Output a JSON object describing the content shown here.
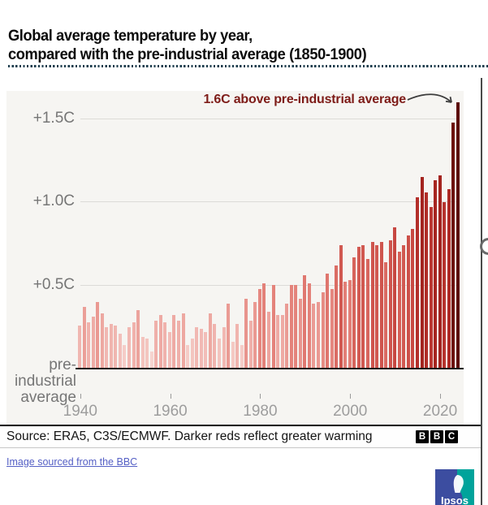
{
  "title": {
    "line1": "Global average temperature by year,",
    "line2": "compared with the pre-industrial average (1850-1900)"
  },
  "annotation": {
    "text": "1.6C above pre-industrial average"
  },
  "axis": {
    "zero_label_lines": [
      "pre-",
      "industrial",
      "average"
    ]
  },
  "source_bar": {
    "text": "Source: ERA5, C3S/ECMWF. Darker reds reflect greater warming",
    "logo_letters": [
      "B",
      "B",
      "C"
    ]
  },
  "footer": {
    "link_text": "Image sourced from the BBC",
    "ipsos_label": "Ipsos"
  },
  "colors": {
    "annotation": "#7e1c18",
    "link": "#5560c5",
    "dotted_divider": "#1d3d4d",
    "ipsos_blue": "#3C4DA0",
    "ipsos_teal": "#00A39B",
    "bar_ramp": [
      [
        0.1,
        "#f6d4cf"
      ],
      [
        0.3,
        "#efaea8"
      ],
      [
        0.5,
        "#e4837b"
      ],
      [
        0.7,
        "#d55f57"
      ],
      [
        0.9,
        "#c23f39"
      ],
      [
        1.1,
        "#ac2823"
      ],
      [
        1.3,
        "#8d1813"
      ],
      [
        1.5,
        "#6b100d"
      ],
      [
        1.65,
        "#540c0a"
      ]
    ]
  },
  "chart_data": {
    "type": "bar",
    "title": "Global average temperature by year, compared with the pre-industrial average (1850-1900)",
    "ylabel": "C above pre-industrial average",
    "ylim": [
      0,
      1.7
    ],
    "grid": true,
    "baseline_label": "pre-industrial average",
    "annotation": "1.6C above pre-industrial average",
    "y_ticks": [
      {
        "value": 0.5,
        "label": "+0.5C"
      },
      {
        "value": 1.0,
        "label": "+1.0C"
      },
      {
        "value": 1.5,
        "label": "+1.5C"
      }
    ],
    "x_ticks": [
      1940,
      1960,
      1980,
      2000,
      2020
    ],
    "x": [
      1940,
      1941,
      1942,
      1943,
      1944,
      1945,
      1946,
      1947,
      1948,
      1949,
      1950,
      1951,
      1952,
      1953,
      1954,
      1955,
      1956,
      1957,
      1958,
      1959,
      1960,
      1961,
      1962,
      1963,
      1964,
      1965,
      1966,
      1967,
      1968,
      1969,
      1970,
      1971,
      1972,
      1973,
      1974,
      1975,
      1976,
      1977,
      1978,
      1979,
      1980,
      1981,
      1982,
      1983,
      1984,
      1985,
      1986,
      1987,
      1988,
      1989,
      1990,
      1991,
      1992,
      1993,
      1994,
      1995,
      1996,
      1997,
      1998,
      1999,
      2000,
      2001,
      2002,
      2003,
      2004,
      2005,
      2006,
      2007,
      2008,
      2009,
      2010,
      2011,
      2012,
      2013,
      2014,
      2015,
      2016,
      2017,
      2018,
      2019,
      2020,
      2021,
      2022,
      2023,
      2024
    ],
    "values": [
      0.26,
      0.37,
      0.28,
      0.31,
      0.4,
      0.33,
      0.25,
      0.27,
      0.26,
      0.21,
      0.14,
      0.25,
      0.28,
      0.35,
      0.19,
      0.18,
      0.1,
      0.29,
      0.32,
      0.28,
      0.22,
      0.32,
      0.29,
      0.33,
      0.14,
      0.18,
      0.25,
      0.24,
      0.22,
      0.33,
      0.27,
      0.18,
      0.25,
      0.39,
      0.16,
      0.27,
      0.14,
      0.42,
      0.29,
      0.4,
      0.48,
      0.51,
      0.34,
      0.5,
      0.32,
      0.32,
      0.39,
      0.5,
      0.5,
      0.42,
      0.56,
      0.51,
      0.39,
      0.4,
      0.46,
      0.57,
      0.48,
      0.62,
      0.74,
      0.52,
      0.53,
      0.67,
      0.73,
      0.74,
      0.66,
      0.76,
      0.74,
      0.76,
      0.64,
      0.77,
      0.85,
      0.7,
      0.74,
      0.8,
      0.84,
      1.03,
      1.15,
      1.06,
      0.97,
      1.13,
      1.16,
      1.0,
      1.08,
      1.48,
      1.6
    ]
  }
}
